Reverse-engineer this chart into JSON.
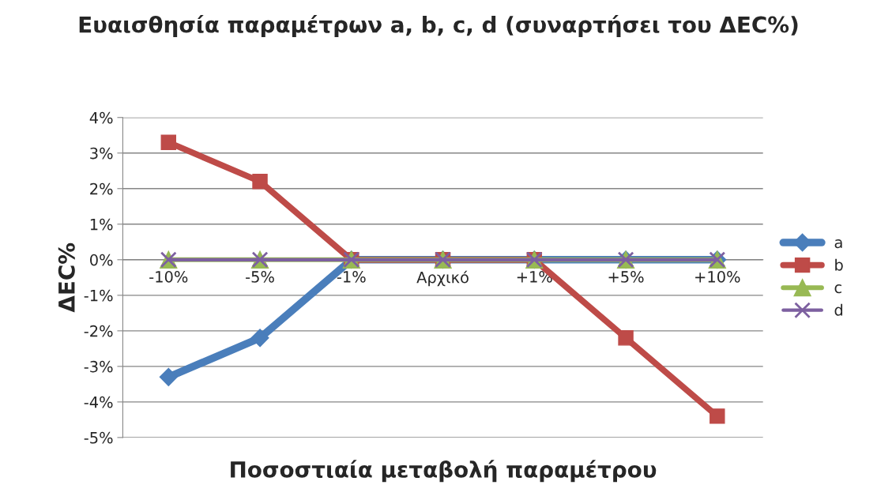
{
  "chart_data": {
    "type": "line",
    "title": "Ευαισθησία παραμέτρων a, b, c, d (συναρτήσει του ΔEC%)",
    "xlabel": "Ποσοστιαία μεταβολή παραμέτρου",
    "ylabel": "ΔEC%",
    "categories": [
      "-10%",
      "-5%",
      "-1%",
      "Αρχικό",
      "+1%",
      "+5%",
      "+10%"
    ],
    "series": [
      {
        "name": "a",
        "color": "#4a7ebb",
        "marker": "diamond",
        "values": [
          -3.3,
          -2.2,
          0,
          0,
          0,
          0,
          0
        ]
      },
      {
        "name": "b",
        "color": "#be4b48",
        "marker": "square",
        "values": [
          3.3,
          2.2,
          0,
          0,
          0,
          -2.2,
          -4.4
        ]
      },
      {
        "name": "c",
        "color": "#98b954",
        "marker": "triangle",
        "values": [
          0,
          0,
          0,
          0,
          0,
          0,
          0
        ]
      },
      {
        "name": "d",
        "color": "#7d60a0",
        "marker": "cross",
        "values": [
          0,
          0,
          0,
          0,
          0,
          0,
          0
        ]
      }
    ],
    "ylim": [
      -5,
      4
    ],
    "yticks": [
      {
        "value": -5,
        "label": "-5%"
      },
      {
        "value": -4,
        "label": "-4%"
      },
      {
        "value": -3,
        "label": "-3%"
      },
      {
        "value": -2,
        "label": "-2%"
      },
      {
        "value": -1,
        "label": "-1%"
      },
      {
        "value": 0,
        "label": "0%"
      },
      {
        "value": 1,
        "label": "1%"
      },
      {
        "value": 2,
        "label": "2%"
      },
      {
        "value": 3,
        "label": "3%"
      },
      {
        "value": 4,
        "label": "4%"
      }
    ],
    "grid": "y",
    "legend": "right",
    "line_style": "solid"
  }
}
